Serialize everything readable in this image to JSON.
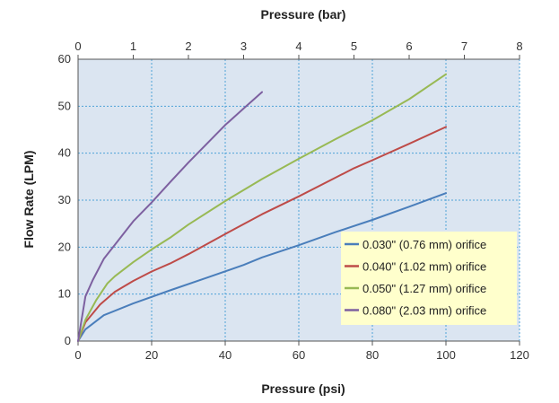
{
  "chart_data": {
    "type": "line",
    "top_axis_title": "Pressure (bar)",
    "top_axis_range": [
      0,
      8
    ],
    "top_ticks": [
      "0",
      "1",
      "2",
      "3",
      "4",
      "5",
      "6",
      "7",
      "8"
    ],
    "xlabel": "Pressure (psi)",
    "xlim": [
      0,
      120
    ],
    "x_ticks": [
      "0",
      "20",
      "40",
      "60",
      "80",
      "100",
      "120"
    ],
    "ylabel": "Flow Rate (LPM)",
    "ylim": [
      0,
      60
    ],
    "y_ticks": [
      "0",
      "10",
      "20",
      "30",
      "40",
      "50",
      "60"
    ],
    "grid": true,
    "legend_position": "bottom-right",
    "plot_background": "#dbe5f1",
    "legend_background": "#ffffcc",
    "series": [
      {
        "name": "0.030\" (0.76 mm) orifice",
        "color": "#4a7ebb",
        "x": [
          0,
          2,
          7,
          15,
          25,
          35,
          45,
          50,
          60,
          70,
          80,
          90,
          100
        ],
        "y": [
          0,
          2.5,
          5.5,
          8,
          10.8,
          13.5,
          16.2,
          17.8,
          20.4,
          23.2,
          25.8,
          28.6,
          31.5
        ]
      },
      {
        "name": "0.040\" (1.02 mm) orifice",
        "color": "#be4b48",
        "x": [
          0,
          2,
          6,
          10,
          15,
          20,
          25,
          30,
          40,
          50,
          60,
          70,
          75,
          80,
          90,
          100
        ],
        "y": [
          0,
          4,
          7.8,
          10.5,
          12.8,
          14.8,
          16.5,
          18.5,
          22.8,
          27,
          30.8,
          34.8,
          36.8,
          38.5,
          42,
          45.6
        ]
      },
      {
        "name": "0.050\" (1.27 mm) orifice",
        "color": "#98b954",
        "x": [
          0,
          2,
          5,
          8,
          10,
          15,
          20,
          25,
          30,
          40,
          50,
          60,
          70,
          80,
          90,
          100
        ],
        "y": [
          0,
          4.5,
          8.8,
          12.3,
          13.8,
          16.8,
          19.5,
          22,
          24.8,
          29.8,
          34.5,
          38.8,
          43,
          47,
          51.5,
          56.8
        ]
      },
      {
        "name": "0.080\" (2.03 mm) orifice",
        "color": "#7d60a0",
        "x": [
          0,
          2,
          4,
          7,
          10,
          15,
          20,
          25,
          30,
          35,
          40,
          45,
          50
        ],
        "y": [
          0,
          9.5,
          13,
          17.5,
          20.5,
          25.5,
          29.5,
          33.8,
          38,
          42,
          46,
          49.5,
          53
        ]
      }
    ]
  }
}
